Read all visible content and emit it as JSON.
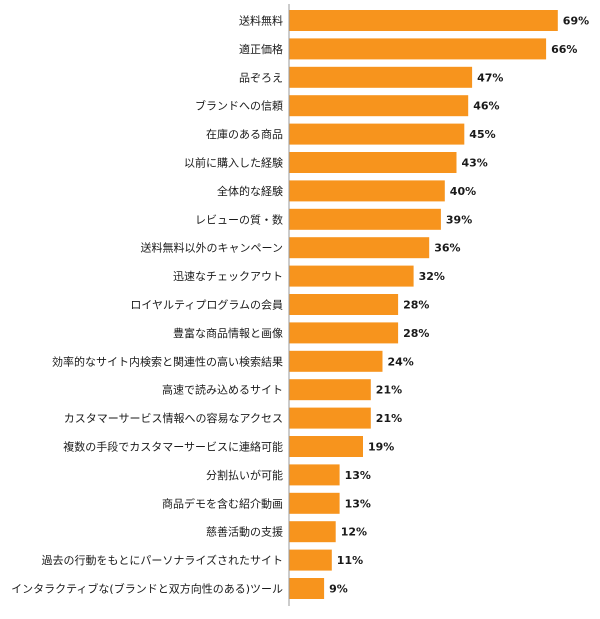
{
  "chart_data": {
    "type": "bar",
    "orientation": "horizontal",
    "categories": [
      "送料無料",
      "適正価格",
      "品ぞろえ",
      "ブランドへの信頼",
      "在庫のある商品",
      "以前に購入した経験",
      "全体的な経験",
      "レビューの質・数",
      "送料無料以外のキャンペーン",
      "迅速なチェックアウト",
      "ロイヤルティプログラムの会員",
      "豊富な商品情報と画像",
      "効率的なサイト内検索と関連性の高い検索結果",
      "高速で読み込めるサイト",
      "カスタマーサービス情報への容易なアクセス",
      "複数の手段でカスタマーサービスに連絡可能",
      "分割払いが可能",
      "商品デモを含む紹介動画",
      "慈善活動の支援",
      "過去の行動をもとにパーソナライズされたサイト",
      "インタラクティブな(ブランドと双方向性のある)ツール"
    ],
    "values": [
      69,
      66,
      47,
      46,
      45,
      43,
      40,
      39,
      36,
      32,
      28,
      28,
      24,
      21,
      21,
      19,
      13,
      13,
      12,
      11,
      9
    ],
    "value_labels": [
      "69%",
      "66%",
      "47%",
      "46%",
      "45%",
      "43%",
      "40%",
      "39%",
      "36%",
      "32%",
      "28%",
      "28%",
      "24%",
      "21%",
      "21%",
      "19%",
      "13%",
      "13%",
      "12%",
      "11%",
      "9%"
    ],
    "xlim": [
      0,
      100
    ],
    "grid": false,
    "legend": "none",
    "bar_color": "#f7941d"
  }
}
